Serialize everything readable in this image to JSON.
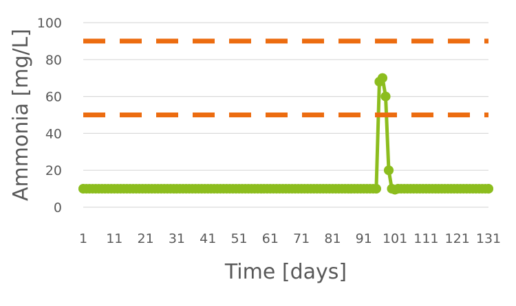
{
  "chart_data": {
    "type": "line",
    "xlabel": "Time [days]",
    "ylabel": "Ammonia [mg/L]",
    "xlim": [
      1,
      131
    ],
    "ylim": [
      0,
      100
    ],
    "x_ticks": [
      "1",
      "11",
      "21",
      "31",
      "41",
      "51",
      "61",
      "71",
      "81",
      "91",
      "101",
      "111",
      "121",
      "131"
    ],
    "y_ticks": [
      "0",
      "20",
      "40",
      "60",
      "80",
      "100"
    ],
    "grid": true,
    "legend": "none",
    "series": [
      {
        "color": "#8cbd1e",
        "style": "solid-markers",
        "points": [
          {
            "x": 1,
            "y": 10
          },
          {
            "x": 95,
            "y": 10
          },
          {
            "x": 96,
            "y": 68
          },
          {
            "x": 97,
            "y": 70
          },
          {
            "x": 98,
            "y": 60
          },
          {
            "x": 99,
            "y": 20
          },
          {
            "x": 100,
            "y": 10
          },
          {
            "x": 101,
            "y": 9.5
          },
          {
            "x": 102,
            "y": 10
          },
          {
            "x": 131,
            "y": 10
          }
        ]
      },
      {
        "color": "#ec6c10",
        "style": "dashed",
        "points": [
          {
            "x": 1,
            "y": 90
          },
          {
            "x": 131,
            "y": 90
          }
        ]
      },
      {
        "color": "#ec6c10",
        "style": "dashed",
        "points": [
          {
            "x": 1,
            "y": 50
          },
          {
            "x": 131,
            "y": 50
          }
        ]
      }
    ]
  }
}
